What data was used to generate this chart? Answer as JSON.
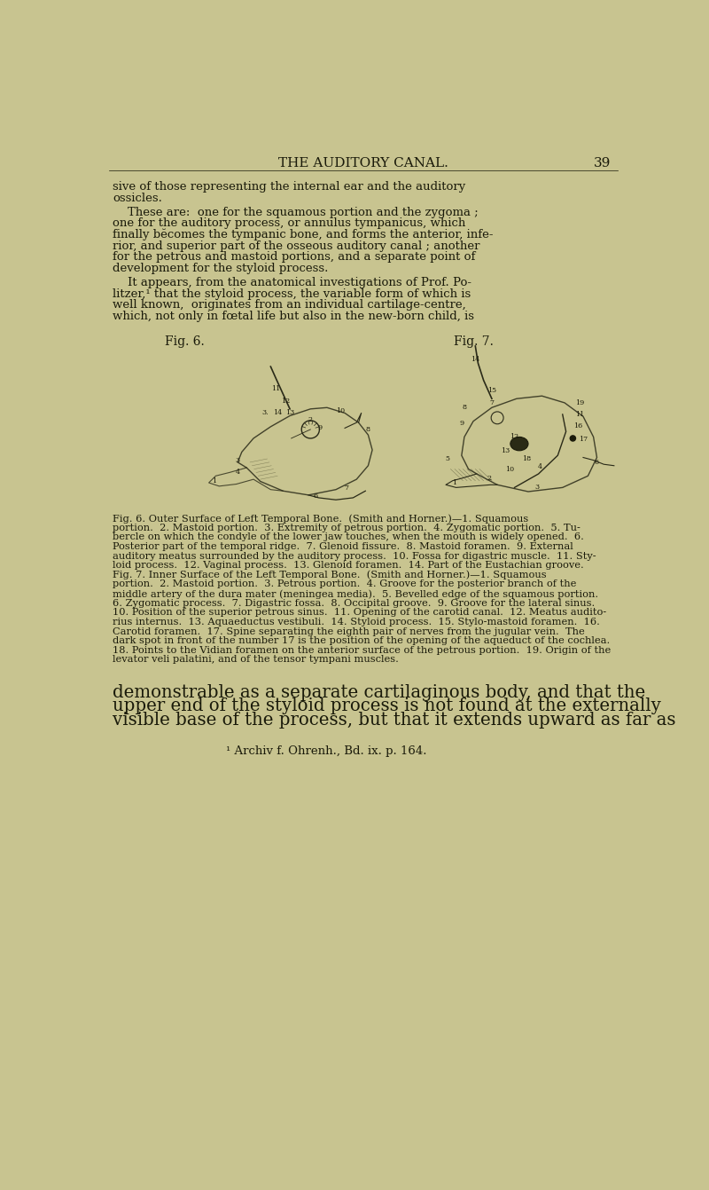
{
  "background_color": "#c8c490",
  "text_color": "#1a1a0a",
  "title": "THE AUDITORY CANAL.",
  "page_number": "39",
  "title_fontsize": 11,
  "body_fontsize": 9.5,
  "caption_fontsize": 8.2,
  "fig6_label": "Fig. 6.",
  "fig7_label": "Fig. 7.",
  "caption6": "Fig. 6. Outer Surface of Left Temporal Bone.  (Smith and Horner.)—1. Squamous\nportion.  2. Mastoid portion.  3. Extremity of petrous portion.  4. Zygomatic portion.  5. Tu-\nbercle on which the condyle of the lower jaw touches, when the mouth is widely opened.  6.\nPosterior part of the temporal ridge.  7. Glenoid fissure.  8. Mastoid foramen.  9. External\nauditory meatus surrounded by the auditory process.  10. Fossa for digastric muscle.  11. Sty-\nloid process.  12. Vaginal process.  13. Glenoid foramen.  14. Part of the Eustachian groove.",
  "caption7": "Fig. 7. Inner Surface of the Left Temporal Bone.  (Smith and Horner.)—1. Squamous\nportion.  2. Mastoid portion.  3. Petrous portion.  4. Groove for the posterior branch of the\nmiddle artery of the dura mater (meningea media).  5. Bevelled edge of the squamous portion.\n6. Zygomatic process.  7. Digastric fossa.  8. Occipital groove.  9. Groove for the lateral sinus.\n10. Position of the superior petrous sinus.  11. Opening of the carotid canal.  12. Meatus audito-\nrius internus.  13. Aquaeductus vestibuli.  14. Styloid process.  15. Stylo-mastoid foramen.  16.\nCarotid foramen.  17. Spine separating the eighth pair of nerves from the jugular vein.  The\ndark spot in front of the number 17 is the position of the opening of the aqueduct of the cochlea.\n18. Points to the Vidian foramen on the anterior surface of the petrous portion.  19. Origin of the\nlevator veli palatini, and of the tensor tympani muscles.",
  "footnote": "¹ Archiv f. Ohrenh., Bd. ix. p. 164."
}
